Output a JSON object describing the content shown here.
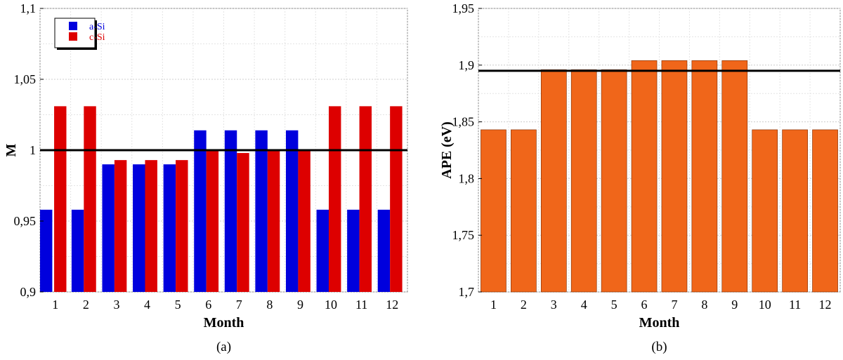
{
  "colors": {
    "a_si": "#0000dd",
    "c_si": "#dd0000",
    "ape": "#f0661a",
    "refline": "#000000",
    "grid": "#cccccc"
  },
  "chart_data": [
    {
      "type": "bar",
      "caption": "(a)",
      "xlabel": "Month",
      "ylabel": "M",
      "ylim": [
        0.9,
        1.1
      ],
      "yticks": [
        0.9,
        0.95,
        1,
        1.05,
        1.1
      ],
      "ytick_labels": [
        "0,9",
        "0,95",
        "1",
        "1,05",
        "1,1"
      ],
      "categories": [
        "1",
        "2",
        "3",
        "4",
        "5",
        "6",
        "7",
        "8",
        "9",
        "10",
        "11",
        "12"
      ],
      "series": [
        {
          "name": "a-Si",
          "values": [
            0.958,
            0.958,
            0.99,
            0.99,
            0.99,
            1.014,
            1.014,
            1.014,
            1.014,
            0.958,
            0.958,
            0.958
          ]
        },
        {
          "name": "c-Si",
          "values": [
            1.031,
            1.031,
            0.993,
            0.993,
            0.993,
            1.0,
            0.998,
            1.0,
            1.0,
            1.031,
            1.031,
            1.031
          ]
        }
      ],
      "reference_line": 1.0,
      "grid": true,
      "legend_position": "top-left"
    },
    {
      "type": "bar",
      "caption": "(b)",
      "xlabel": "Month",
      "ylabel": "APE (eV)",
      "ylim": [
        1.7,
        1.95
      ],
      "yticks": [
        1.7,
        1.75,
        1.8,
        1.85,
        1.9,
        1.95
      ],
      "ytick_labels": [
        "1,7",
        "1,75",
        "1,8",
        "1,85",
        "1,9",
        "1,95"
      ],
      "categories": [
        "1",
        "2",
        "3",
        "4",
        "5",
        "6",
        "7",
        "8",
        "9",
        "10",
        "11",
        "12"
      ],
      "series": [
        {
          "values": [
            1.843,
            1.843,
            1.896,
            1.896,
            1.896,
            1.904,
            1.904,
            1.904,
            1.904,
            1.843,
            1.843,
            1.843
          ]
        }
      ],
      "reference_line": 1.895,
      "grid": true
    }
  ]
}
